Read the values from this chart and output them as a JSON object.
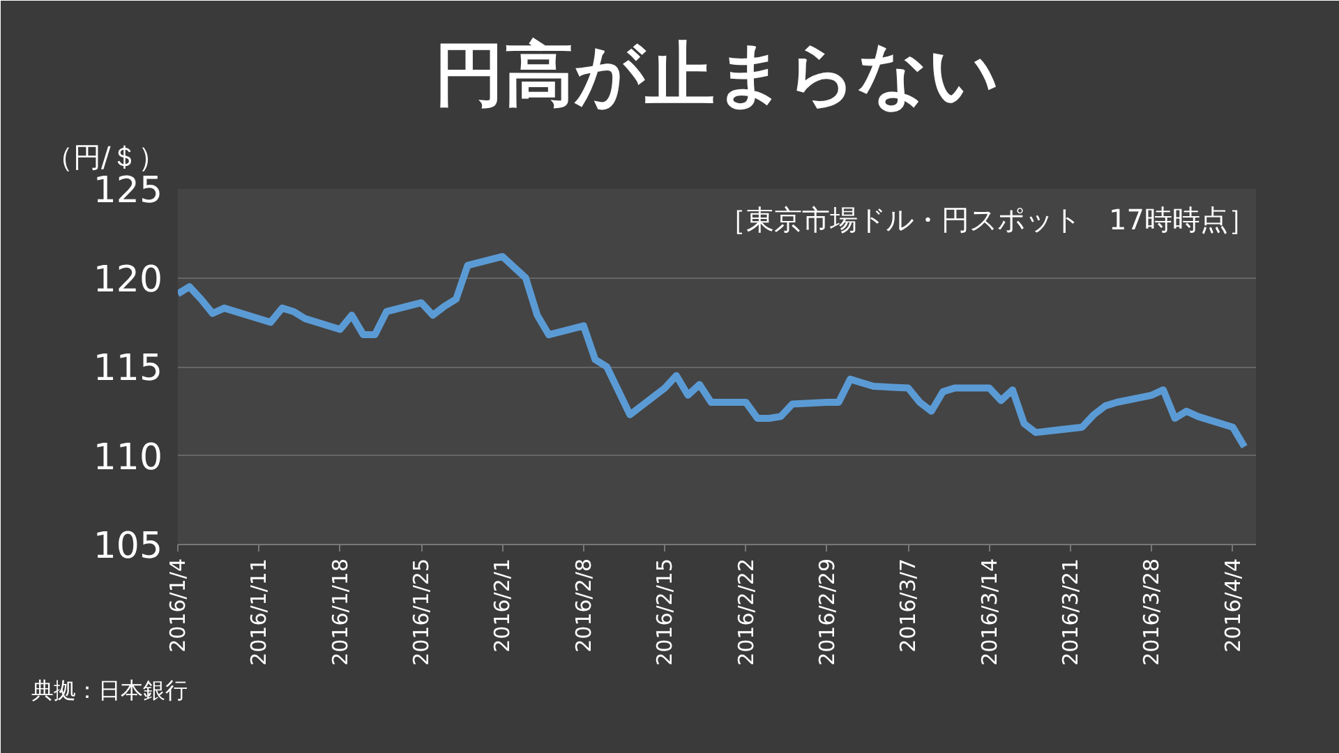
{
  "chart_data": {
    "type": "line",
    "title": "円高が止まらない",
    "subtitle": "［東京市場ドル・円スポット　17時時点］",
    "ylabel": "（円/＄）",
    "annotations": [
      "典拠：日本銀行"
    ],
    "x": [
      "2016-01-04",
      "2016-01-05",
      "2016-01-06",
      "2016-01-07",
      "2016-01-08",
      "2016-01-12",
      "2016-01-13",
      "2016-01-14",
      "2016-01-15",
      "2016-01-18",
      "2016-01-19",
      "2016-01-20",
      "2016-01-21",
      "2016-01-22",
      "2016-01-25",
      "2016-01-26",
      "2016-01-27",
      "2016-01-28",
      "2016-01-29",
      "2016-02-01",
      "2016-02-02",
      "2016-02-03",
      "2016-02-04",
      "2016-02-05",
      "2016-02-08",
      "2016-02-09",
      "2016-02-10",
      "2016-02-12",
      "2016-02-15",
      "2016-02-16",
      "2016-02-17",
      "2016-02-18",
      "2016-02-19",
      "2016-02-22",
      "2016-02-23",
      "2016-02-24",
      "2016-02-25",
      "2016-02-26",
      "2016-02-29",
      "2016-03-01",
      "2016-03-02",
      "2016-03-03",
      "2016-03-04",
      "2016-03-07",
      "2016-03-08",
      "2016-03-09",
      "2016-03-10",
      "2016-03-11",
      "2016-03-14",
      "2016-03-15",
      "2016-03-16",
      "2016-03-17",
      "2016-03-18",
      "2016-03-22",
      "2016-03-23",
      "2016-03-24",
      "2016-03-25",
      "2016-03-28",
      "2016-03-29",
      "2016-03-30",
      "2016-03-31",
      "2016-04-01",
      "2016-04-04",
      "2016-04-05"
    ],
    "series": [
      {
        "color": "#5b9bd5",
        "values": [
          119.1,
          119.5,
          118.8,
          118.0,
          118.3,
          117.5,
          118.3,
          118.1,
          117.7,
          117.1,
          117.9,
          116.8,
          116.8,
          118.1,
          118.6,
          117.9,
          118.4,
          118.8,
          120.7,
          121.2,
          120.6,
          120.0,
          117.9,
          116.8,
          117.3,
          115.4,
          115.0,
          112.3,
          113.8,
          114.5,
          113.4,
          114.0,
          113.0,
          113.0,
          112.1,
          112.1,
          112.2,
          112.9,
          113.0,
          113.0,
          114.3,
          114.1,
          113.9,
          113.8,
          113.0,
          112.5,
          113.6,
          113.8,
          113.8,
          113.1,
          113.7,
          111.8,
          111.3,
          111.6,
          112.3,
          112.8,
          113.0,
          113.4,
          113.7,
          112.1,
          112.5,
          112.2,
          111.6,
          110.5
        ]
      }
    ],
    "xlim": [
      "2016-01-04",
      "2016-04-06"
    ],
    "xticks": [
      {
        "value": "2016-01-04",
        "label": "2016/1/4"
      },
      {
        "value": "2016-01-11",
        "label": "2016/1/11"
      },
      {
        "value": "2016-01-18",
        "label": "2016/1/18"
      },
      {
        "value": "2016-01-25",
        "label": "2016/1/25"
      },
      {
        "value": "2016-02-01",
        "label": "2016/2/1"
      },
      {
        "value": "2016-02-08",
        "label": "2016/2/8"
      },
      {
        "value": "2016-02-15",
        "label": "2016/2/15"
      },
      {
        "value": "2016-02-22",
        "label": "2016/2/22"
      },
      {
        "value": "2016-02-29",
        "label": "2016/2/29"
      },
      {
        "value": "2016-03-07",
        "label": "2016/3/7"
      },
      {
        "value": "2016-03-14",
        "label": "2016/3/14"
      },
      {
        "value": "2016-03-21",
        "label": "2016/3/21"
      },
      {
        "value": "2016-03-28",
        "label": "2016/3/28"
      },
      {
        "value": "2016-04-04",
        "label": "2016/4/4"
      }
    ],
    "ylim": [
      105,
      125
    ],
    "yticks": [
      105,
      110,
      115,
      120,
      125
    ],
    "grid": "y",
    "marker": "none",
    "line_style": "solid"
  }
}
